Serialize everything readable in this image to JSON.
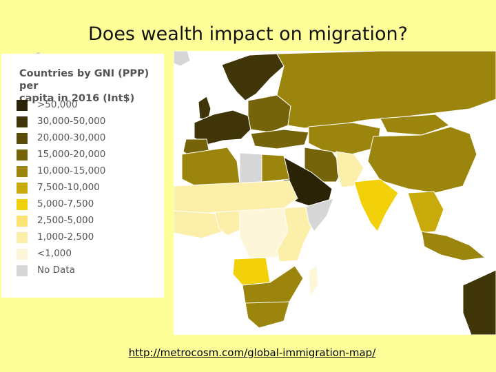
{
  "slide": {
    "title": "Does wealth impact on migration?",
    "source_link": "http://metrocosm.com/global-immigration-map/"
  },
  "legend": {
    "title_line1": "Countries by GNI (PPP) per",
    "title_line2": "capita in 2016 (Int$)",
    "items": [
      {
        "label": ">50,000",
        "color": "#2b2305"
      },
      {
        "label": "30,000-50,000",
        "color": "#3f3508"
      },
      {
        "label": "20,000-30,000",
        "color": "#5a4c08"
      },
      {
        "label": "15,000-20,000",
        "color": "#75640a"
      },
      {
        "label": "10,000-15,000",
        "color": "#9c850c"
      },
      {
        "label": "7,500-10,000",
        "color": "#c8aa0a"
      },
      {
        "label": "5,000-7,500",
        "color": "#f2d10a"
      },
      {
        "label": "2,500-5,000",
        "color": "#fae370"
      },
      {
        "label": "1,000-2,500",
        "color": "#fbefaa"
      },
      {
        "label": "<1,000",
        "color": "#fdf6d9"
      },
      {
        "label": "No Data",
        "color": "#d6d6d6"
      }
    ]
  },
  "map": {
    "ocean_color": "#ffffff",
    "region_levels": {
      "russia": 4,
      "north_europe": 1,
      "west_europe": 1,
      "east_europe": 3,
      "turkey_caucasus": 3,
      "central_asia": 4,
      "china": 4,
      "mongolia": 4,
      "arabia": 0,
      "iran": 3,
      "pakistan_afghan": 8,
      "india": 6,
      "southeast_asia": 5,
      "indonesia": 4,
      "australia": 1,
      "north_africa": 4,
      "sahara_band": 8,
      "west_africa": 8,
      "nigeria": 8,
      "central_africa": 9,
      "east_africa": 8,
      "angola": 6,
      "southern_africa": 4,
      "south_africa": 4,
      "madagascar": 9,
      "libya_nodata": 10,
      "somalia_nodata": 10,
      "greenland_nodata": 10
    }
  }
}
